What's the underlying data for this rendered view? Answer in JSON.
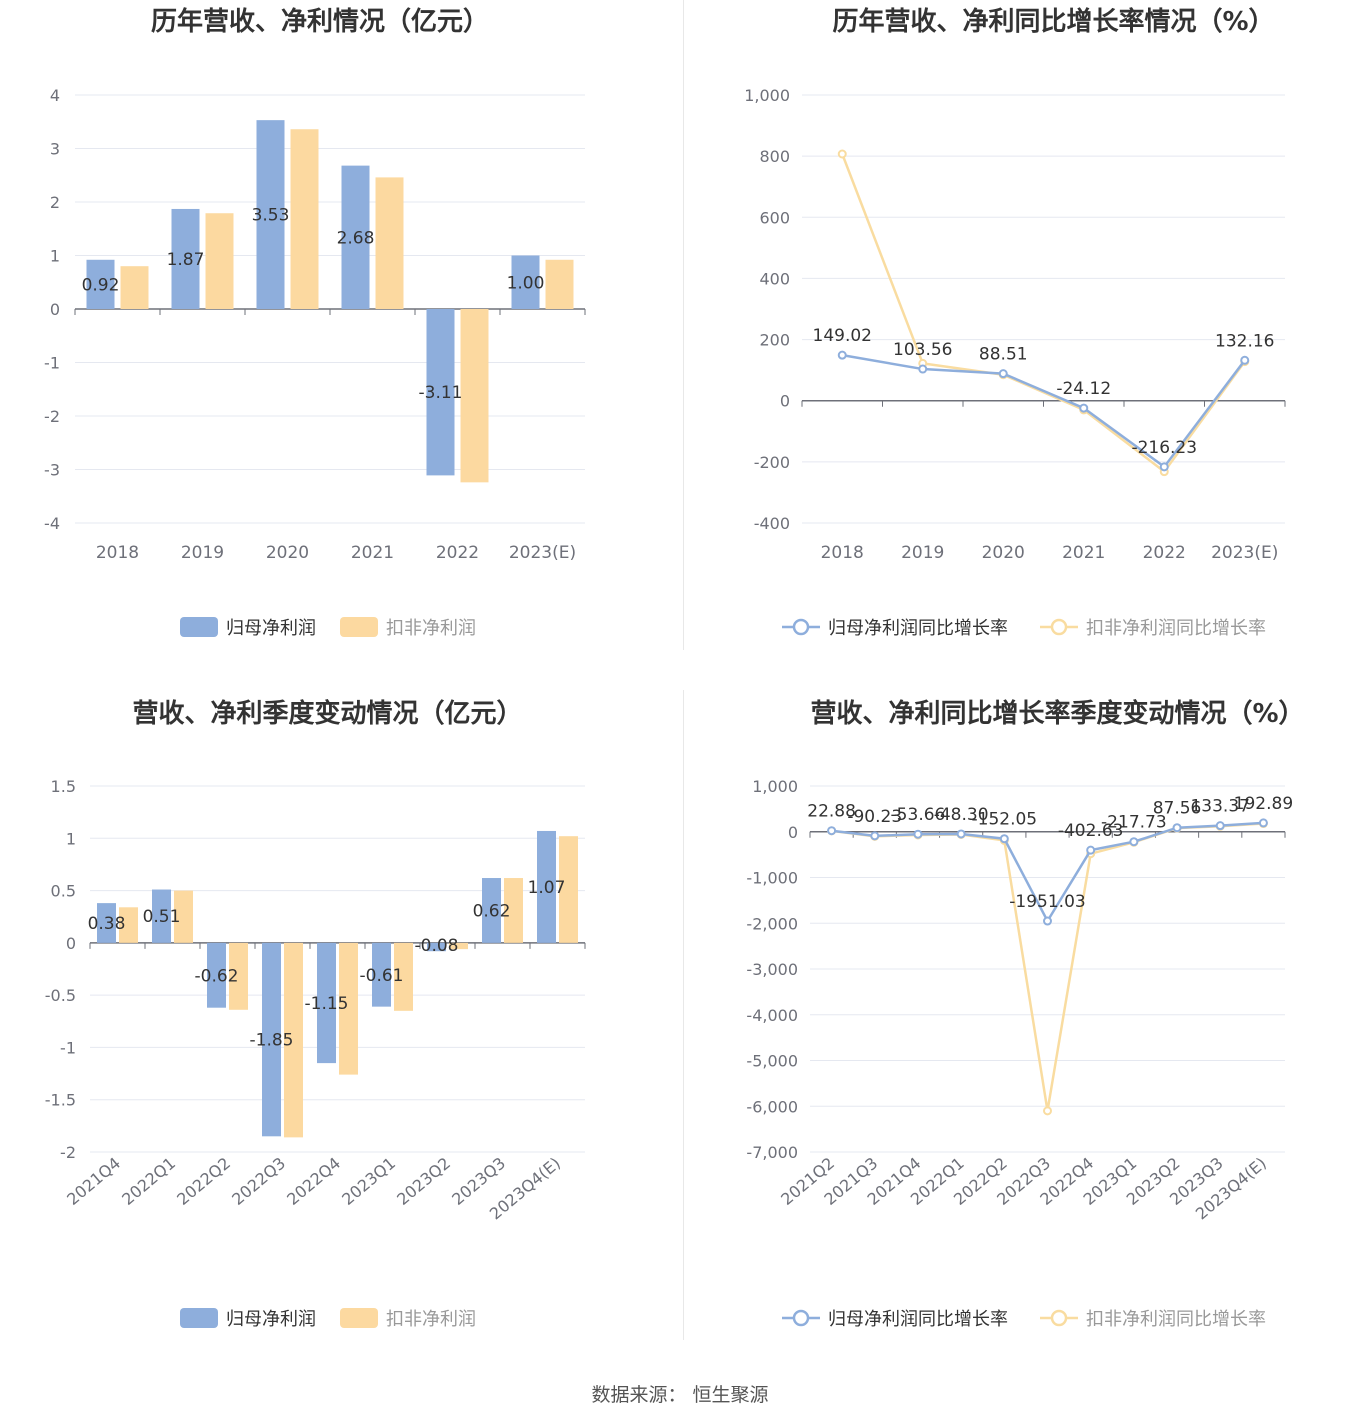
{
  "colors": {
    "primary": "#8eaedc",
    "secondary": "#fcd9a0",
    "primary_line": "#8eaedc",
    "secondary_line": "#f9dca0",
    "grid": "#e5e8f0",
    "axis": "#6e7079",
    "label": "#333333"
  },
  "source": {
    "label": "数据来源：",
    "value": "恒生聚源"
  },
  "chart_data": [
    {
      "type": "bar",
      "title": "历年营收、净利情况（亿元）",
      "categories": [
        "2018",
        "2019",
        "2020",
        "2021",
        "2022",
        "2023(E)"
      ],
      "series": [
        {
          "name": "归母净利润",
          "values": [
            0.92,
            1.87,
            3.53,
            2.68,
            -3.11,
            1.0
          ],
          "labels": [
            "0.92",
            "1.87",
            "3.53",
            "2.68",
            "-3.11",
            "1.00"
          ]
        },
        {
          "name": "扣非净利润",
          "values": [
            0.8,
            1.79,
            3.36,
            2.46,
            -3.24,
            0.92
          ]
        }
      ],
      "ylim": [
        -4,
        4
      ],
      "yticks": [
        "-4",
        "-3",
        "-2",
        "-1",
        "0",
        "1",
        "2",
        "3",
        "4"
      ],
      "ytick_values": [
        -4,
        -3,
        -2,
        -1,
        0,
        1,
        2,
        3,
        4
      ],
      "legend": "bottom",
      "grid": true
    },
    {
      "type": "line",
      "title": "历年营收、净利同比增长率情况（%）",
      "categories": [
        "2018",
        "2019",
        "2020",
        "2021",
        "2022",
        "2023(E)"
      ],
      "series": [
        {
          "name": "归母净利润同比增长率",
          "values": [
            149.02,
            103.56,
            88.51,
            -24.12,
            -216.23,
            132.16
          ],
          "labels": [
            "149.02",
            "103.56",
            "88.51",
            "-24.12",
            "-216.23",
            "132.16"
          ]
        },
        {
          "name": "扣非净利润同比增长率",
          "values": [
            807,
            122,
            85,
            -30,
            -232,
            128
          ]
        }
      ],
      "ylim": [
        -400,
        1000
      ],
      "yticks": [
        "-400",
        "-200",
        "0",
        "200",
        "400",
        "600",
        "800",
        "1,000"
      ],
      "ytick_values": [
        -400,
        -200,
        0,
        200,
        400,
        600,
        800,
        1000
      ],
      "legend": "bottom",
      "grid": true
    },
    {
      "type": "bar",
      "title": "营收、净利季度变动情况（亿元）",
      "categories": [
        "2021Q4",
        "2022Q1",
        "2022Q2",
        "2022Q3",
        "2022Q4",
        "2023Q1",
        "2023Q2",
        "2023Q3",
        "2023Q4(E)"
      ],
      "series": [
        {
          "name": "归母净利润",
          "values": [
            0.38,
            0.51,
            -0.62,
            -1.85,
            -1.15,
            -0.61,
            -0.08,
            0.62,
            1.07
          ],
          "labels": [
            "0.38",
            "0.51",
            "-0.62",
            "-1.85",
            "-1.15",
            "-0.61",
            "-0.08",
            "0.62",
            "1.07"
          ]
        },
        {
          "name": "扣非净利润",
          "values": [
            0.34,
            0.5,
            -0.64,
            -1.86,
            -1.26,
            -0.65,
            -0.06,
            0.62,
            1.02
          ]
        }
      ],
      "ylim": [
        -2,
        1.5
      ],
      "yticks": [
        "-2",
        "-1.5",
        "-1",
        "-0.5",
        "0",
        "0.5",
        "1",
        "1.5"
      ],
      "ytick_values": [
        -2,
        -1.5,
        -1,
        -0.5,
        0,
        0.5,
        1,
        1.5
      ],
      "legend": "bottom",
      "grid": true
    },
    {
      "type": "line",
      "title": "营收、净利同比增长率季度变动情况（%）",
      "categories": [
        "2021Q2",
        "2021Q3",
        "2021Q4",
        "2022Q1",
        "2022Q2",
        "2022Q3",
        "2022Q4",
        "2023Q1",
        "2023Q2",
        "2023Q3",
        "2023Q4(E)"
      ],
      "series": [
        {
          "name": "归母净利润同比增长率",
          "values": [
            22.88,
            -90.23,
            -53.66,
            -48.3,
            -152.05,
            -1951.03,
            -402.63,
            -217.73,
            87.56,
            133.37,
            192.89
          ],
          "labels": [
            "22.88",
            "-90.23",
            "-53.66",
            "-48.30",
            "-152.05",
            "-1951.03",
            "-402.63",
            "-217.73",
            "87.56",
            "133.37",
            "192.89"
          ]
        },
        {
          "name": "扣非净利润同比增长率",
          "values": [
            20,
            -100,
            -70,
            -60,
            -190,
            -6100,
            -480,
            -230,
            80,
            120,
            180
          ]
        }
      ],
      "ylim": [
        -7000,
        1000
      ],
      "yticks": [
        "-7,000",
        "-6,000",
        "-5,000",
        "-4,000",
        "-3,000",
        "-2,000",
        "-1,000",
        "0",
        "1,000"
      ],
      "ytick_values": [
        -7000,
        -6000,
        -5000,
        -4000,
        -3000,
        -2000,
        -1000,
        0,
        1000
      ],
      "legend": "bottom",
      "grid": true
    }
  ]
}
